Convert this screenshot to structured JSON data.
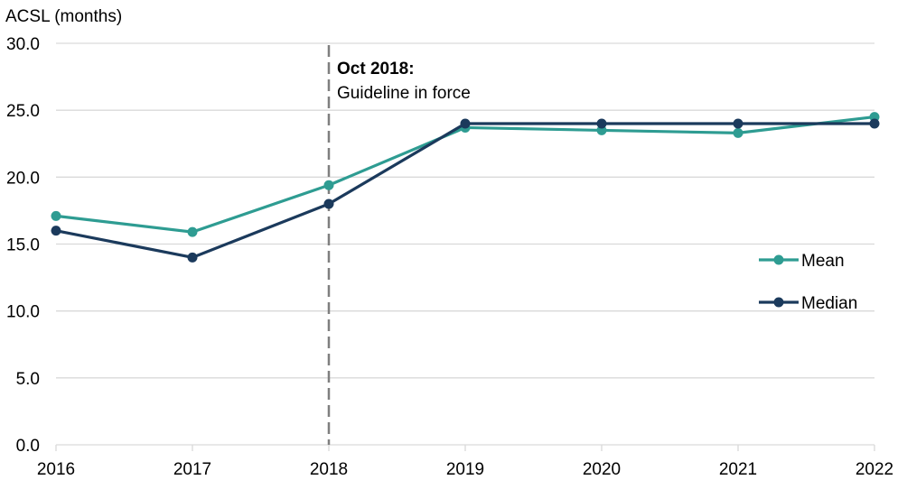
{
  "chart_data": {
    "type": "line",
    "ylabel": "ACSL (months)",
    "xlabel": "",
    "x": [
      2016,
      2017,
      2018,
      2019,
      2020,
      2021,
      2022
    ],
    "x_tick_labels": [
      "2016",
      "2017",
      "2018",
      "2019",
      "2020",
      "2021",
      "2022"
    ],
    "ylim": [
      0,
      30
    ],
    "y_ticks": [
      0,
      5,
      10,
      15,
      20,
      25,
      30
    ],
    "y_tick_labels": [
      "0.0",
      "5.0",
      "10.0",
      "15.0",
      "20.0",
      "25.0",
      "30.0"
    ],
    "grid": true,
    "legend_position": "right",
    "series": [
      {
        "name": "Mean",
        "color": "#2e9c92",
        "values": [
          17.1,
          15.9,
          19.4,
          23.7,
          23.5,
          23.3,
          24.5
        ]
      },
      {
        "name": "Median",
        "color": "#1b3a5c",
        "values": [
          16.0,
          14.0,
          18.0,
          24.0,
          24.0,
          24.0,
          24.0
        ]
      }
    ],
    "annotation": {
      "x": 2018,
      "style": "dashed vertical line",
      "color": "#7f7f7f",
      "title": "Oct 2018:",
      "text": "Guideline in force"
    }
  }
}
